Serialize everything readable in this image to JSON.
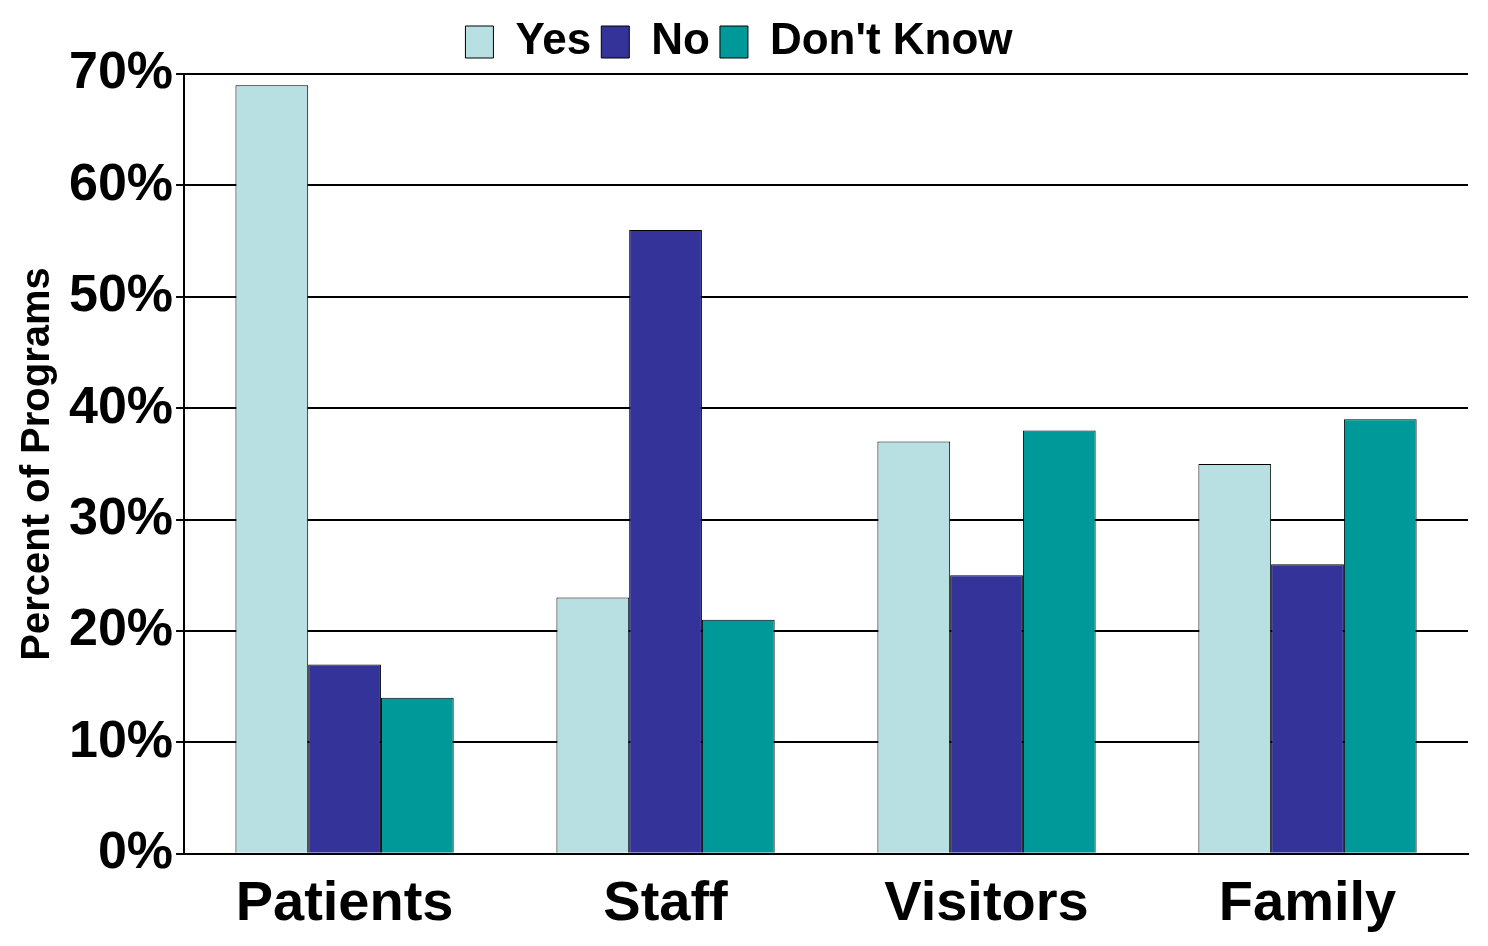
{
  "chart_data": {
    "type": "bar",
    "ylabel": "Percent of Programs",
    "categories": [
      "Patients",
      "Staff",
      "Visitors",
      "Family"
    ],
    "series": [
      {
        "name": "Yes",
        "color": "#b8dfe2",
        "values": [
          69,
          23,
          37,
          35
        ]
      },
      {
        "name": "No",
        "color": "#333399",
        "values": [
          17,
          56,
          25,
          26
        ]
      },
      {
        "name": "Don't Know",
        "color": "#009999",
        "values": [
          14,
          21,
          38,
          39
        ]
      }
    ],
    "ylim": [
      0,
      70
    ],
    "yticks": [
      {
        "value": 0,
        "label": "0%"
      },
      {
        "value": 10,
        "label": "10%"
      },
      {
        "value": 20,
        "label": "20%"
      },
      {
        "value": 30,
        "label": "30%"
      },
      {
        "value": 40,
        "label": "40%"
      },
      {
        "value": 50,
        "label": "50%"
      },
      {
        "value": 60,
        "label": "60%"
      },
      {
        "value": 70,
        "label": "70%"
      }
    ],
    "grid": "y",
    "legend": "top"
  }
}
